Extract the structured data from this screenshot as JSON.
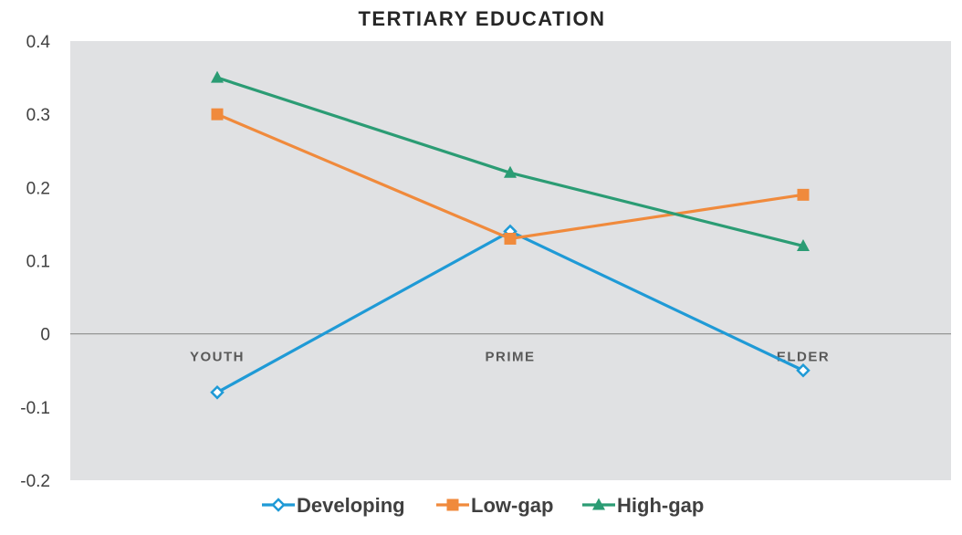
{
  "chart_data": {
    "type": "line",
    "title": "TERTIARY EDUCATION",
    "xlabel": "",
    "ylabel": "",
    "categories": [
      "YOUTH",
      "PRIME",
      "ELDER"
    ],
    "ylim": [
      -0.2,
      0.4
    ],
    "yticks": [
      -0.2,
      -0.1,
      0,
      0.1,
      0.2,
      0.3,
      0.4
    ],
    "ytick_labels": [
      "-0.2",
      "-0.1",
      "0",
      "0.1",
      "0.2",
      "0.3",
      "0.4"
    ],
    "grid": false,
    "legend_position": "bottom",
    "plot_background": "#e0e1e3",
    "series": [
      {
        "name": "Developing",
        "color": "#1f9ad6",
        "marker": "diamond",
        "values": [
          -0.08,
          0.14,
          -0.05
        ]
      },
      {
        "name": "Low-gap",
        "color": "#f08a3c",
        "marker": "square",
        "values": [
          0.3,
          0.13,
          0.19
        ]
      },
      {
        "name": "High-gap",
        "color": "#2b9c74",
        "marker": "triangle",
        "values": [
          0.35,
          0.22,
          0.12
        ]
      }
    ]
  }
}
